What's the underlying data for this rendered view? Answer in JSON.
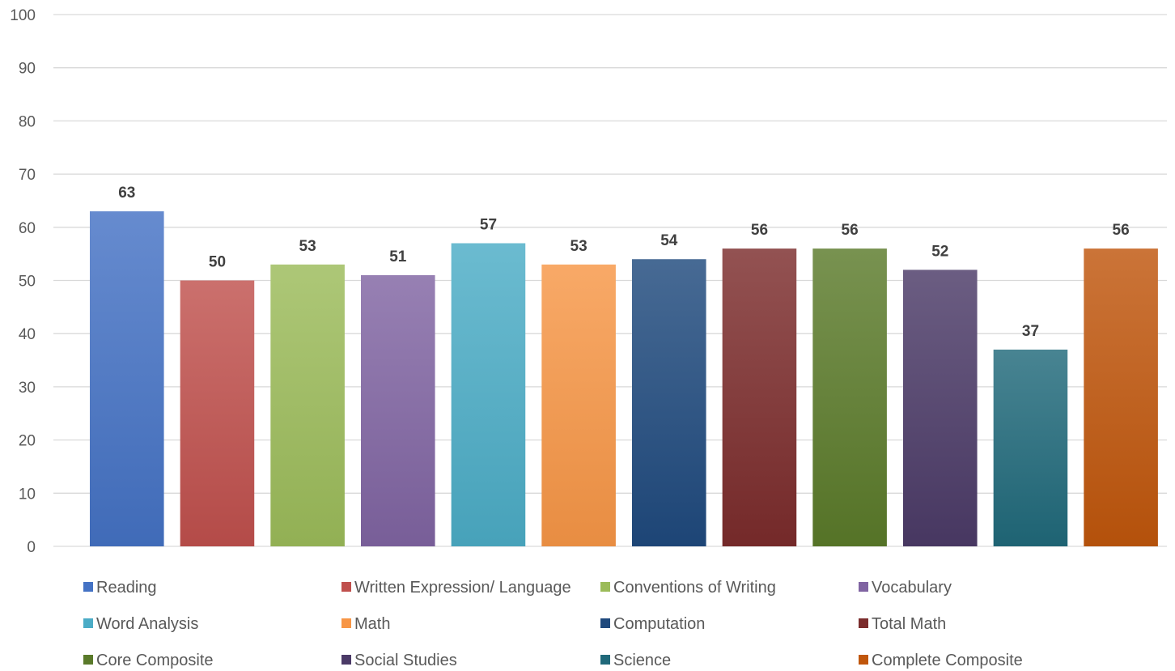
{
  "chart_data": {
    "type": "bar",
    "title": "",
    "xlabel": "",
    "ylabel": "",
    "ylim": [
      0,
      100
    ],
    "yticks": [
      0,
      10,
      20,
      30,
      40,
      50,
      60,
      70,
      80,
      90,
      100
    ],
    "grid": true,
    "legend_position": "bottom",
    "data_labels": true,
    "categories": [
      "Reading",
      "Written Expression/ Language",
      "Conventions of Writing",
      "Vocabulary",
      "Word Analysis",
      "Math",
      "Computation",
      "Total Math",
      "Core Composite",
      "Social Studies",
      "Science",
      "Complete Composite"
    ],
    "values": [
      63,
      50,
      53,
      51,
      57,
      53,
      54,
      56,
      56,
      52,
      37,
      56
    ],
    "colors": [
      "#4472C4",
      "#C0504D",
      "#9BBB59",
      "#8064A2",
      "#4BACC6",
      "#F79646",
      "#1F497D",
      "#7B2C2C",
      "#5A7A2A",
      "#4B3A67",
      "#20697A",
      "#C0560C"
    ]
  }
}
